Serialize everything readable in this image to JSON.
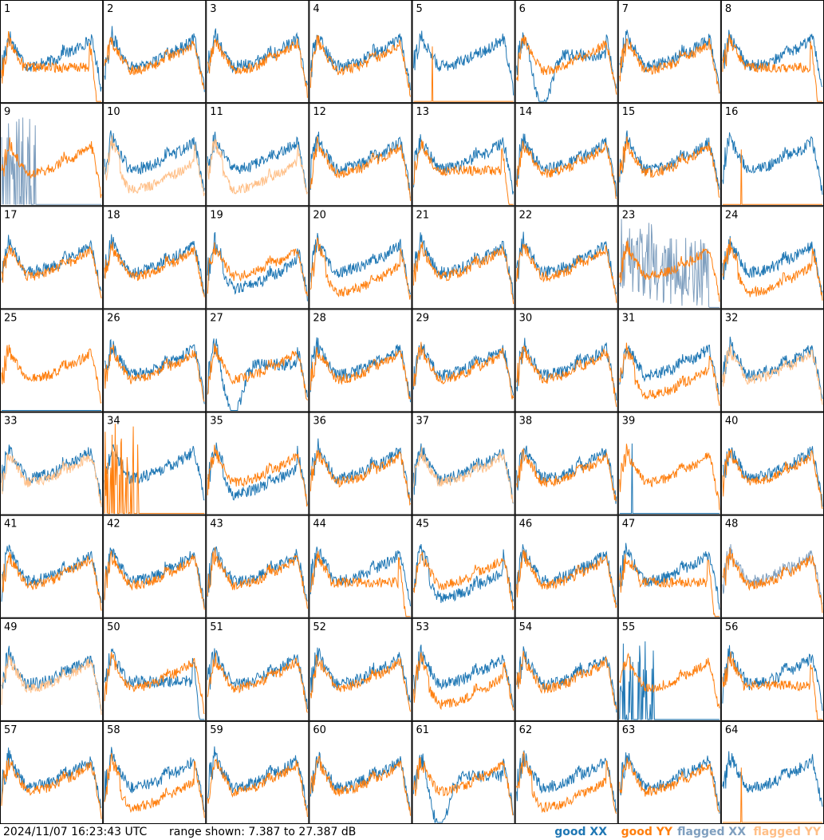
{
  "chart_data": {
    "type": "line",
    "panel_count": 64,
    "grid": "8x8",
    "panels": [
      "1",
      "2",
      "3",
      "4",
      "5",
      "6",
      "7",
      "8",
      "9",
      "10",
      "11",
      "12",
      "13",
      "14",
      "15",
      "16",
      "17",
      "18",
      "19",
      "20",
      "21",
      "22",
      "23",
      "24",
      "25",
      "26",
      "27",
      "28",
      "29",
      "30",
      "31",
      "32",
      "33",
      "34",
      "35",
      "36",
      "37",
      "38",
      "39",
      "40",
      "41",
      "42",
      "43",
      "44",
      "45",
      "46",
      "47",
      "48",
      "49",
      "50",
      "51",
      "52",
      "53",
      "54",
      "55",
      "56",
      "57",
      "58",
      "59",
      "60",
      "61",
      "62",
      "63",
      "64"
    ],
    "series": [
      {
        "name": "good XX",
        "color": "#1f77b4"
      },
      {
        "name": "good YY",
        "color": "#ff7f0e"
      },
      {
        "name": "flagged XX",
        "color": "#7f9fbf"
      },
      {
        "name": "flagged YY",
        "color": "#ffbf87"
      }
    ],
    "ylim": [
      7.387,
      27.387
    ],
    "anomalies": {
      "1": "yy_dropoff",
      "5": "yy_flat",
      "6": "xx_dip",
      "8": "yy_dropoff",
      "9": "xx_flagged_spikes",
      "10": "yy_flagged_low",
      "11": "yy_flagged_low",
      "13": "yy_dropoff",
      "16": "yy_flat",
      "19": "xx_low",
      "20": "yy_low",
      "23": "xx_flagged_noise",
      "24": "yy_low",
      "25": "xx_flat",
      "27": "xx_dip",
      "31": "yy_low",
      "32": "yy_flagged_spiky",
      "33": "yy_flagged_overlay",
      "34": "yy_spikes",
      "35": "xx_low",
      "37": "yy_flagged_overlay",
      "39": "xx_spike",
      "44": "yy_dropoff",
      "45": "xx_low",
      "47": "yy_dropoff",
      "48": "xx_flagged_low",
      "49": "yy_flagged_overlay",
      "50": "xx_dropoff",
      "53": "yy_low",
      "55": "xx_spikes",
      "56": "yy_dropoff",
      "58": "yy_low",
      "61": "xx_dip",
      "62": "yy_low",
      "64": "yy_flat"
    }
  },
  "footer": {
    "timestamp": "2024/11/07 16:23:43 UTC",
    "range_text": "range shown: 7.387 to 27.387 dB"
  }
}
